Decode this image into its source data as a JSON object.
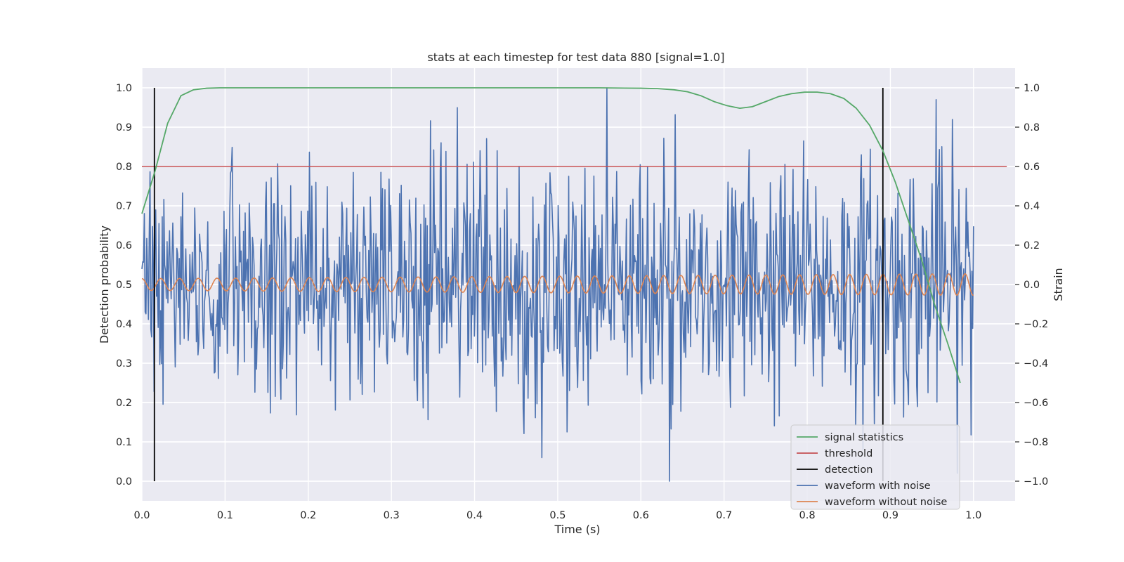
{
  "chart_data": {
    "type": "line",
    "title": "stats at each timestep for test data 880 [signal=1.0]",
    "xlabel": "Time (s)",
    "ylabel_left": "Detection probability",
    "ylabel_right": "Strain",
    "xlim": [
      0.0,
      1.05
    ],
    "ylim_left": [
      -0.05,
      1.05
    ],
    "ylim_right": [
      -1.1,
      1.1
    ],
    "x_ticks": [
      "0.0",
      "0.1",
      "0.2",
      "0.3",
      "0.4",
      "0.5",
      "0.6",
      "0.7",
      "0.8",
      "0.9",
      "1.0"
    ],
    "y_left_ticks": [
      "0.0",
      "0.1",
      "0.2",
      "0.3",
      "0.4",
      "0.5",
      "0.6",
      "0.7",
      "0.8",
      "0.9",
      "1.0"
    ],
    "y_right_ticks": [
      "−1.0",
      "−0.8",
      "−0.6",
      "−0.4",
      "−0.2",
      "0.0",
      "0.2",
      "0.4",
      "0.6",
      "0.8",
      "1.0"
    ],
    "grid": true,
    "legend_position": "bottom-right",
    "series": [
      {
        "name": "signal statistics",
        "axis": "left",
        "color": "#55a868",
        "x": [
          0.0,
          0.016,
          0.031,
          0.047,
          0.062,
          0.078,
          0.094,
          0.109,
          0.125,
          0.2,
          0.3,
          0.4,
          0.5,
          0.55,
          0.6,
          0.62,
          0.64,
          0.656,
          0.672,
          0.688,
          0.703,
          0.719,
          0.734,
          0.75,
          0.766,
          0.781,
          0.797,
          0.812,
          0.828,
          0.844,
          0.859,
          0.875,
          0.891,
          0.906,
          0.922,
          0.938,
          0.953,
          0.969,
          0.984
        ],
        "y": [
          0.68,
          0.79,
          0.91,
          0.98,
          0.995,
          0.999,
          1.0,
          1.0,
          1.0,
          1.0,
          1.0,
          1.0,
          1.0,
          1.0,
          0.999,
          0.998,
          0.995,
          0.99,
          0.98,
          0.965,
          0.955,
          0.948,
          0.952,
          0.965,
          0.978,
          0.985,
          0.989,
          0.989,
          0.985,
          0.973,
          0.948,
          0.905,
          0.84,
          0.76,
          0.66,
          0.56,
          0.45,
          0.35,
          0.25
        ]
      },
      {
        "name": "threshold",
        "axis": "left",
        "color": "#c44e52",
        "x": [
          0.0,
          1.04
        ],
        "y": [
          0.8,
          0.8
        ]
      },
      {
        "name": "detection",
        "axis": "left",
        "color": "#000000",
        "segments": [
          {
            "x": 0.015,
            "y0": 0.0,
            "y1": 1.0
          },
          {
            "x": 0.891,
            "y0": 0.0,
            "y1": 1.0
          }
        ]
      },
      {
        "name": "waveform with noise",
        "axis": "right",
        "color": "#4c72b0",
        "x_start": 0.0,
        "x_end": 1.0,
        "points": 1024,
        "amplitude_range": [
          -1.0,
          1.0
        ],
        "notable_values": [
          {
            "x": 0.559,
            "y": 1.0
          },
          {
            "x": 0.634,
            "y": -1.0
          },
          {
            "x": 0.955,
            "y": 0.94
          },
          {
            "x": 0.481,
            "y": -0.88
          }
        ]
      },
      {
        "name": "waveform without noise",
        "axis": "right",
        "color": "#dd8452",
        "x_start": 0.0,
        "x_end": 1.0,
        "cycles": 44,
        "amplitude_start": 0.03,
        "amplitude_end": 0.055
      }
    ]
  }
}
